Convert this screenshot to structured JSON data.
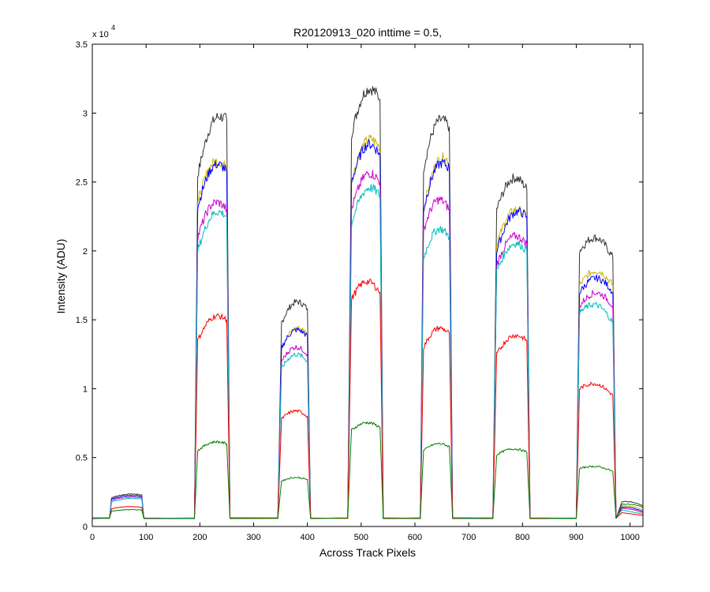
{
  "chart_data": {
    "type": "line",
    "title": "R20120913_020 inttime = 0.5,",
    "xlabel": "Across Track Pixels",
    "ylabel": "Intensity (ADU)",
    "y_exponent_label": "x 10",
    "y_exponent": "4",
    "xlim": [
      0,
      1024
    ],
    "ylim": [
      0,
      35000
    ],
    "grid": false,
    "legend": "none",
    "x_ticks": [
      0,
      100,
      200,
      300,
      400,
      500,
      600,
      700,
      800,
      900,
      1000
    ],
    "x_tick_labels": [
      "0",
      "100",
      "200",
      "300",
      "400",
      "500",
      "600",
      "700",
      "800",
      "900",
      "1000"
    ],
    "y_ticks": [
      0,
      5000,
      10000,
      15000,
      20000,
      25000,
      30000,
      35000
    ],
    "y_tick_labels": [
      "0",
      "0.5",
      "1",
      "1.5",
      "2",
      "2.5",
      "3",
      "3.5"
    ],
    "baseline": 600,
    "x": [
      0,
      32,
      36,
      92,
      96,
      190,
      196,
      250,
      256,
      345,
      352,
      400,
      406,
      475,
      482,
      535,
      541,
      610,
      616,
      664,
      670,
      745,
      752,
      808,
      814,
      900,
      906,
      968,
      974,
      985,
      1024
    ],
    "series": [
      {
        "name": "black",
        "color": "#333333",
        "values": [
          600,
          600,
          2100,
          2300,
          600,
          600,
          25500,
          29500,
          600,
          600,
          14800,
          15800,
          600,
          600,
          28500,
          31000,
          600,
          600,
          26000,
          29000,
          600,
          600,
          23000,
          24500,
          600,
          600,
          20000,
          19500,
          600,
          1800,
          1500
        ]
      },
      {
        "name": "yellow",
        "color": "#c8b400",
        "values": [
          600,
          600,
          2000,
          2200,
          600,
          600,
          23500,
          26000,
          600,
          600,
          13000,
          14000,
          600,
          600,
          25000,
          27500,
          600,
          600,
          23000,
          26500,
          600,
          600,
          20500,
          22500,
          600,
          600,
          17500,
          17500,
          600,
          1500,
          1200
        ]
      },
      {
        "name": "blue",
        "color": "#0000ff",
        "values": [
          600,
          600,
          2000,
          2200,
          600,
          600,
          23200,
          25800,
          600,
          600,
          13000,
          13800,
          600,
          600,
          25000,
          27000,
          600,
          600,
          23000,
          26000,
          600,
          600,
          20000,
          22500,
          600,
          600,
          17000,
          17000,
          600,
          1400,
          1100
        ]
      },
      {
        "name": "magenta",
        "color": "#cc00cc",
        "values": [
          600,
          600,
          1900,
          2100,
          600,
          600,
          21000,
          23000,
          600,
          600,
          12000,
          12500,
          600,
          600,
          23000,
          25000,
          600,
          600,
          21500,
          23000,
          600,
          600,
          19000,
          20500,
          600,
          600,
          16000,
          16000,
          600,
          1300,
          1000
        ]
      },
      {
        "name": "cyan",
        "color": "#00bbbb",
        "values": [
          600,
          600,
          1800,
          2000,
          600,
          600,
          20000,
          22500,
          600,
          600,
          11500,
          12000,
          600,
          600,
          22000,
          24000,
          600,
          600,
          19500,
          21000,
          600,
          600,
          18500,
          20000,
          600,
          600,
          15500,
          14800,
          600,
          1200,
          900
        ]
      },
      {
        "name": "red",
        "color": "#ff0000",
        "values": [
          600,
          600,
          1300,
          1400,
          600,
          600,
          13500,
          15000,
          600,
          600,
          7800,
          8000,
          600,
          600,
          16500,
          17000,
          600,
          600,
          13000,
          14000,
          600,
          600,
          12500,
          13500,
          600,
          600,
          10000,
          9500,
          600,
          1000,
          800
        ]
      },
      {
        "name": "green",
        "color": "#008000",
        "values": [
          600,
          600,
          1100,
          1200,
          600,
          600,
          5500,
          6000,
          600,
          600,
          3300,
          3400,
          600,
          600,
          7000,
          7200,
          600,
          600,
          5500,
          5800,
          600,
          600,
          5200,
          5400,
          600,
          600,
          4200,
          4000,
          600,
          1600,
          1400
        ]
      }
    ]
  }
}
